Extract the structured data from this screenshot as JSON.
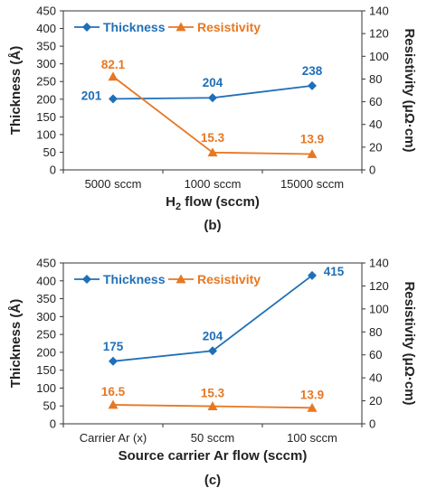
{
  "chart_data": [
    {
      "type": "line",
      "panel_label": "(b)",
      "categories": [
        "5000 sccm",
        "1000 sccm",
        "15000 sccm"
      ],
      "xlabel_main": "H",
      "xlabel_sub": "2",
      "xlabel_rest": " flow (sccm)",
      "ylabel_left": "Thickness (Å)",
      "ylabel_right": "Resistivity (μΩ·cm)",
      "ylim_left": [
        0,
        450
      ],
      "ylim_right": [
        0,
        140
      ],
      "yticks_left": [
        "0",
        "50",
        "100",
        "150",
        "200",
        "250",
        "300",
        "350",
        "400",
        "450"
      ],
      "yticks_right": [
        "0",
        "20",
        "40",
        "60",
        "80",
        "100",
        "120",
        "140"
      ],
      "legend_placement": "top",
      "series": [
        {
          "name": "Thickness",
          "axis": "left",
          "marker": "diamond",
          "color": "#1f6fb8",
          "values": [
            201,
            204,
            238
          ],
          "labels": [
            "201",
            "204",
            "238"
          ]
        },
        {
          "name": "Resistivity",
          "axis": "right",
          "marker": "triangle",
          "color": "#e87722",
          "values": [
            82.1,
            15.3,
            13.9
          ],
          "labels": [
            "82.1",
            "15.3",
            "13.9"
          ]
        }
      ]
    },
    {
      "type": "line",
      "panel_label": "(c)",
      "categories": [
        "Carrier Ar (x)",
        "50 sccm",
        "100 sccm"
      ],
      "xlabel_main": "Source carrier Ar flow (sccm)",
      "xlabel_sub": "",
      "xlabel_rest": "",
      "ylabel_left": "Thickness (Å)",
      "ylabel_right": "Resistivity (μΩ·cm)",
      "ylim_left": [
        0,
        450
      ],
      "ylim_right": [
        0,
        140
      ],
      "yticks_left": [
        "0",
        "50",
        "100",
        "150",
        "200",
        "250",
        "300",
        "350",
        "400",
        "450"
      ],
      "yticks_right": [
        "0",
        "20",
        "40",
        "60",
        "80",
        "100",
        "120",
        "140"
      ],
      "legend_placement": "top-left",
      "series": [
        {
          "name": "Thickness",
          "axis": "left",
          "marker": "diamond",
          "color": "#1f6fb8",
          "values": [
            175,
            204,
            415
          ],
          "labels": [
            "175",
            "204",
            "415"
          ]
        },
        {
          "name": "Resistivity",
          "axis": "right",
          "marker": "triangle",
          "color": "#e87722",
          "values": [
            16.5,
            15.3,
            13.9
          ],
          "labels": [
            "16.5",
            "15.3",
            "13.9"
          ]
        }
      ]
    }
  ]
}
